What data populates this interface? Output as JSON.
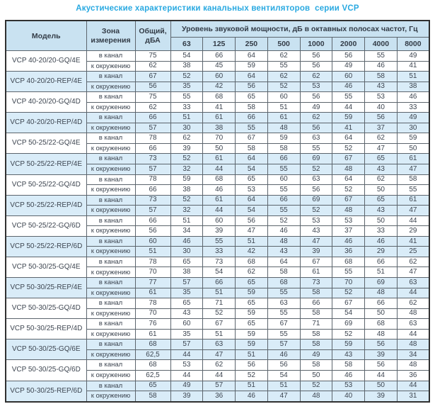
{
  "title": "Акустические характеристики канальных вентиляторов  серии VCP",
  "table": {
    "headers": {
      "model": "Модель",
      "zone": "Зона\nизмерения",
      "total": "Общий,\nдБА",
      "spl": "Уровень звуковой мощности, дБ в октавных полосах частот, Гц",
      "frequencies": [
        "63",
        "125",
        "250",
        "500",
        "1000",
        "2000",
        "4000",
        "8000"
      ]
    },
    "groups": [
      {
        "model": "VCP 40-20/20-GQ/4E",
        "shaded": false,
        "rows": [
          {
            "zone": "в канал",
            "total": "75",
            "bands": [
              "54",
              "66",
              "64",
              "62",
              "56",
              "56",
              "55",
              "49"
            ]
          },
          {
            "zone": "к окружению",
            "total": "62",
            "bands": [
              "38",
              "45",
              "59",
              "55",
              "56",
              "49",
              "46",
              "41"
            ]
          }
        ]
      },
      {
        "model": "VCP 40-20/20-REP/4E",
        "shaded": true,
        "rows": [
          {
            "zone": "в канал",
            "total": "67",
            "bands": [
              "52",
              "60",
              "64",
              "62",
              "62",
              "60",
              "58",
              "51"
            ]
          },
          {
            "zone": "к окружению",
            "total": "56",
            "bands": [
              "35",
              "42",
              "56",
              "52",
              "53",
              "46",
              "43",
              "38"
            ]
          }
        ]
      },
      {
        "model": "VCP 40-20/20-GQ/4D",
        "shaded": false,
        "rows": [
          {
            "zone": "в канал",
            "total": "75",
            "bands": [
              "55",
              "68",
              "65",
              "60",
              "56",
              "55",
              "53",
              "46"
            ]
          },
          {
            "zone": "к окружению",
            "total": "62",
            "bands": [
              "33",
              "41",
              "58",
              "51",
              "49",
              "44",
              "40",
              "33"
            ]
          }
        ]
      },
      {
        "model": "VCP 40-20/20-REP/4D",
        "shaded": true,
        "rows": [
          {
            "zone": "в канал",
            "total": "66",
            "bands": [
              "51",
              "61",
              "66",
              "61",
              "62",
              "59",
              "56",
              "49"
            ]
          },
          {
            "zone": "к окружению",
            "total": "57",
            "bands": [
              "30",
              "38",
              "55",
              "48",
              "56",
              "41",
              "37",
              "30"
            ]
          }
        ]
      },
      {
        "model": "VCP 50-25/22-GQ/4E",
        "shaded": false,
        "rows": [
          {
            "zone": "в канал",
            "total": "78",
            "bands": [
              "62",
              "70",
              "67",
              "59",
              "63",
              "64",
              "62",
              "59"
            ]
          },
          {
            "zone": "к окружению",
            "total": "66",
            "bands": [
              "39",
              "50",
              "58",
              "58",
              "55",
              "52",
              "47",
              "50"
            ]
          }
        ]
      },
      {
        "model": "VCP 50-25/22-REP/4E",
        "shaded": true,
        "rows": [
          {
            "zone": "в канал",
            "total": "73",
            "bands": [
              "52",
              "61",
              "64",
              "66",
              "69",
              "67",
              "65",
              "61"
            ]
          },
          {
            "zone": "к окружению",
            "total": "57",
            "bands": [
              "32",
              "44",
              "54",
              "55",
              "52",
              "48",
              "43",
              "47"
            ]
          }
        ]
      },
      {
        "model": "VCP 50-25/22-GQ/4D",
        "shaded": false,
        "rows": [
          {
            "zone": "в канал",
            "total": "78",
            "bands": [
              "59",
              "68",
              "65",
              "60",
              "63",
              "64",
              "62",
              "58"
            ]
          },
          {
            "zone": "к окружению",
            "total": "66",
            "bands": [
              "38",
              "46",
              "53",
              "55",
              "56",
              "52",
              "50",
              "55"
            ]
          }
        ]
      },
      {
        "model": "VCP 50-25/22-REP/4D",
        "shaded": true,
        "rows": [
          {
            "zone": "в канал",
            "total": "73",
            "bands": [
              "52",
              "61",
              "64",
              "66",
              "69",
              "67",
              "65",
              "61"
            ]
          },
          {
            "zone": "к окружению",
            "total": "57",
            "bands": [
              "32",
              "44",
              "54",
              "55",
              "52",
              "48",
              "43",
              "47"
            ]
          }
        ]
      },
      {
        "model": "VCP 50-25/22-GQ/6D",
        "shaded": false,
        "rows": [
          {
            "zone": "в канал",
            "total": "66",
            "bands": [
              "51",
              "60",
              "56",
              "52",
              "53",
              "53",
              "50",
              "44"
            ]
          },
          {
            "zone": "к окружению",
            "total": "56",
            "bands": [
              "34",
              "39",
              "47",
              "46",
              "43",
              "37",
              "33",
              "29"
            ]
          }
        ]
      },
      {
        "model": "VCP 50-25/22-REP/6D",
        "shaded": true,
        "rows": [
          {
            "zone": "в канал",
            "total": "60",
            "bands": [
              "46",
              "55",
              "51",
              "48",
              "47",
              "46",
              "46",
              "41"
            ]
          },
          {
            "zone": "к окружению",
            "total": "51",
            "bands": [
              "30",
              "33",
              "42",
              "43",
              "39",
              "36",
              "29",
              "25"
            ]
          }
        ]
      },
      {
        "model": "VCP 50-30/25-GQ/4E",
        "shaded": false,
        "rows": [
          {
            "zone": "в канал",
            "total": "78",
            "bands": [
              "65",
              "73",
              "68",
              "64",
              "67",
              "68",
              "66",
              "62"
            ]
          },
          {
            "zone": "к окружению",
            "total": "70",
            "bands": [
              "38",
              "54",
              "62",
              "58",
              "61",
              "55",
              "51",
              "47"
            ]
          }
        ]
      },
      {
        "model": "VCP 50-30/25-REP/4E",
        "shaded": true,
        "rows": [
          {
            "zone": "в канал",
            "total": "77",
            "bands": [
              "57",
              "66",
              "65",
              "68",
              "73",
              "70",
              "69",
              "63"
            ]
          },
          {
            "zone": "к окружению",
            "total": "61",
            "bands": [
              "35",
              "51",
              "59",
              "55",
              "58",
              "52",
              "48",
              "44"
            ]
          }
        ]
      },
      {
        "model": "VCP 50-30/25-GQ/4D",
        "shaded": false,
        "rows": [
          {
            "zone": "в канал",
            "total": "78",
            "bands": [
              "65",
              "71",
              "65",
              "63",
              "66",
              "67",
              "66",
              "62"
            ]
          },
          {
            "zone": "к окружению",
            "total": "70",
            "bands": [
              "43",
              "52",
              "59",
              "55",
              "58",
              "54",
              "50",
              "48"
            ]
          }
        ]
      },
      {
        "model": "VCP 50-30/25-REP/4D",
        "shaded": false,
        "rows": [
          {
            "zone": "в канал",
            "total": "76",
            "bands": [
              "60",
              "67",
              "65",
              "67",
              "71",
              "69",
              "68",
              "63"
            ]
          },
          {
            "zone": "к окружению",
            "total": "61",
            "bands": [
              "35",
              "51",
              "59",
              "55",
              "58",
              "52",
              "48",
              "44"
            ]
          }
        ]
      },
      {
        "model": "VCP 50-30/25-GQ/6E",
        "shaded": true,
        "rows": [
          {
            "zone": "в канал",
            "total": "68",
            "bands": [
              "57",
              "63",
              "59",
              "57",
              "58",
              "59",
              "56",
              "48"
            ]
          },
          {
            "zone": "к окружению",
            "total": "62,5",
            "bands": [
              "44",
              "47",
              "51",
              "46",
              "49",
              "43",
              "39",
              "34"
            ]
          }
        ]
      },
      {
        "model": "VCP 50-30/25-GQ/6D",
        "shaded": false,
        "rows": [
          {
            "zone": "в канал",
            "total": "68",
            "bands": [
              "53",
              "62",
              "56",
              "56",
              "58",
              "58",
              "56",
              "48"
            ]
          },
          {
            "zone": "к окружению",
            "total": "62,5",
            "bands": [
              "44",
              "44",
              "52",
              "54",
              "50",
              "46",
              "44",
              "36"
            ]
          }
        ]
      },
      {
        "model": "VCP 50-30/25-REP/6D",
        "shaded": true,
        "rows": [
          {
            "zone": "в канал",
            "total": "65",
            "bands": [
              "49",
              "57",
              "51",
              "51",
              "52",
              "53",
              "50",
              "44"
            ]
          },
          {
            "zone": "к окружению",
            "total": "58",
            "bands": [
              "39",
              "36",
              "46",
              "47",
              "48",
              "40",
              "39",
              "31"
            ]
          }
        ]
      }
    ]
  }
}
